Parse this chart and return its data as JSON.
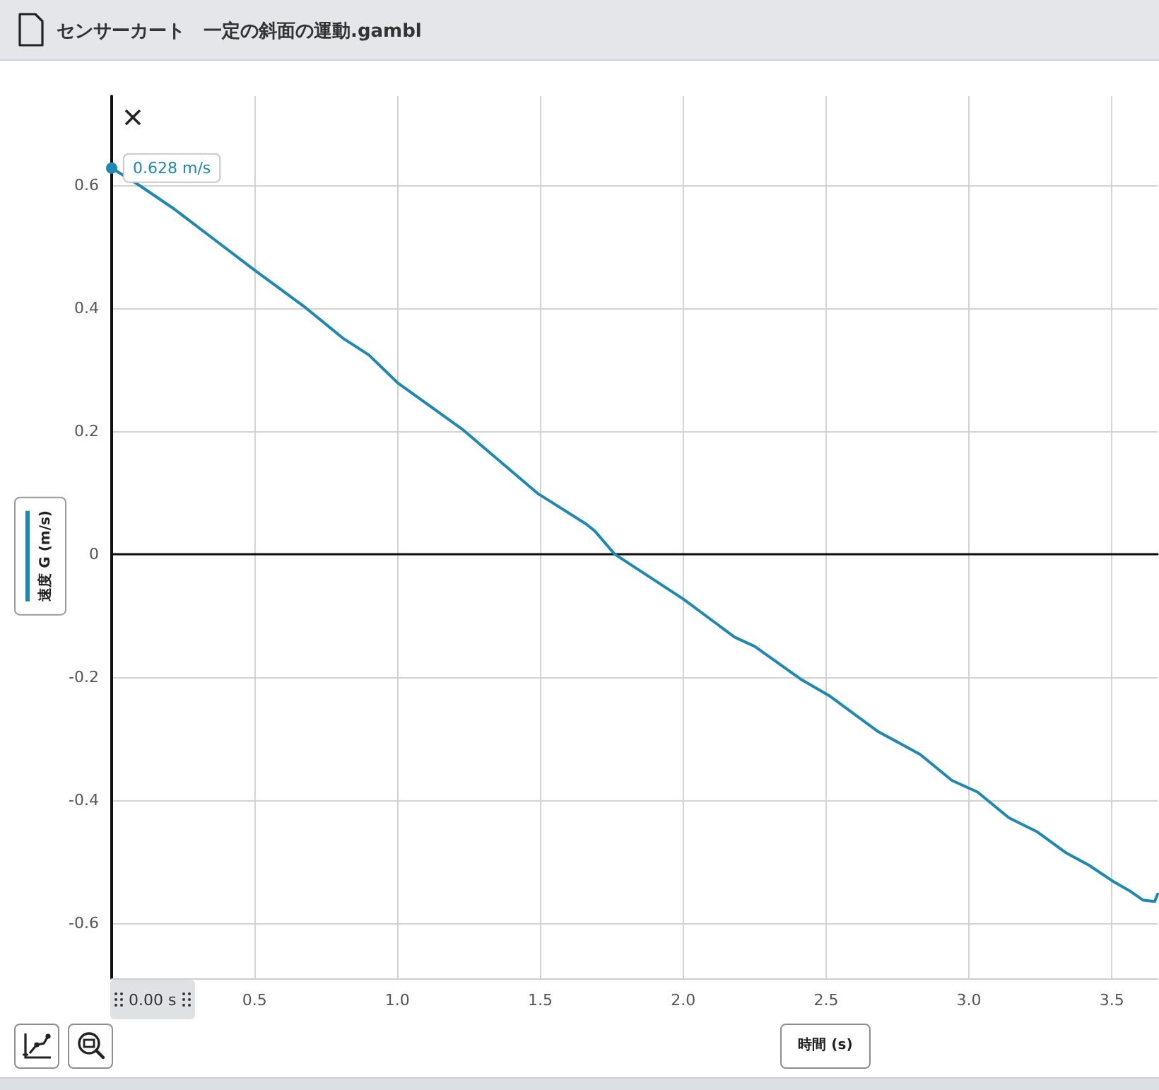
{
  "chart_data": {
    "type": "line",
    "title": "センサーカート　一定の斜面の運動.gambl",
    "xlabel": "時間 (s)",
    "ylabel": "速度 G (m/s)",
    "x": [
      0,
      0.1,
      0.22,
      0.35,
      0.5,
      0.67,
      0.81,
      0.9,
      1.0,
      1.23,
      1.49,
      1.66,
      1.69,
      1.76,
      2.0,
      2.18,
      2.25,
      2.41,
      2.51,
      2.68,
      2.83,
      2.94,
      3.03,
      3.14,
      3.24,
      3.34,
      3.42,
      3.51,
      3.56,
      3.61,
      3.65,
      3.66
    ],
    "series": [
      {
        "color": "#1a8ab4",
        "values": [
          0.628,
          0.599,
          0.561,
          0.515,
          0.462,
          0.404,
          0.351,
          0.324,
          0.279,
          0.202,
          0.099,
          0.049,
          0.038,
          0,
          -0.073,
          -0.135,
          -0.15,
          -0.203,
          -0.23,
          -0.288,
          -0.326,
          -0.368,
          -0.387,
          -0.429,
          -0.452,
          -0.486,
          -0.506,
          -0.534,
          -0.547,
          -0.563,
          -0.565,
          -0.553
        ],
        "value_labels": [
          "0.628 m/s",
          null,
          null,
          null,
          null,
          null,
          null,
          null,
          null,
          null,
          null,
          null,
          null,
          null,
          null,
          null,
          null,
          null,
          null,
          null,
          null,
          null,
          null,
          null,
          null,
          null,
          null,
          null,
          null,
          null,
          null,
          null
        ]
      }
    ],
    "xlim": [
      0,
      3.66
    ],
    "ylim": [
      -0.69,
      0.745
    ],
    "xticks": [
      {
        "value": 0,
        "label": null
      },
      0.5,
      {
        "value": 1,
        "label": "1.0"
      },
      1.5,
      {
        "value": 2,
        "label": "2.0"
      },
      2.5,
      {
        "value": 3,
        "label": "3.0"
      },
      3.5
    ],
    "yticks": [
      -0.6,
      -0.4,
      -0.2,
      0,
      0.2,
      0.4,
      0.6
    ],
    "grid": true,
    "annotations": [
      "0.00 s"
    ]
  }
}
